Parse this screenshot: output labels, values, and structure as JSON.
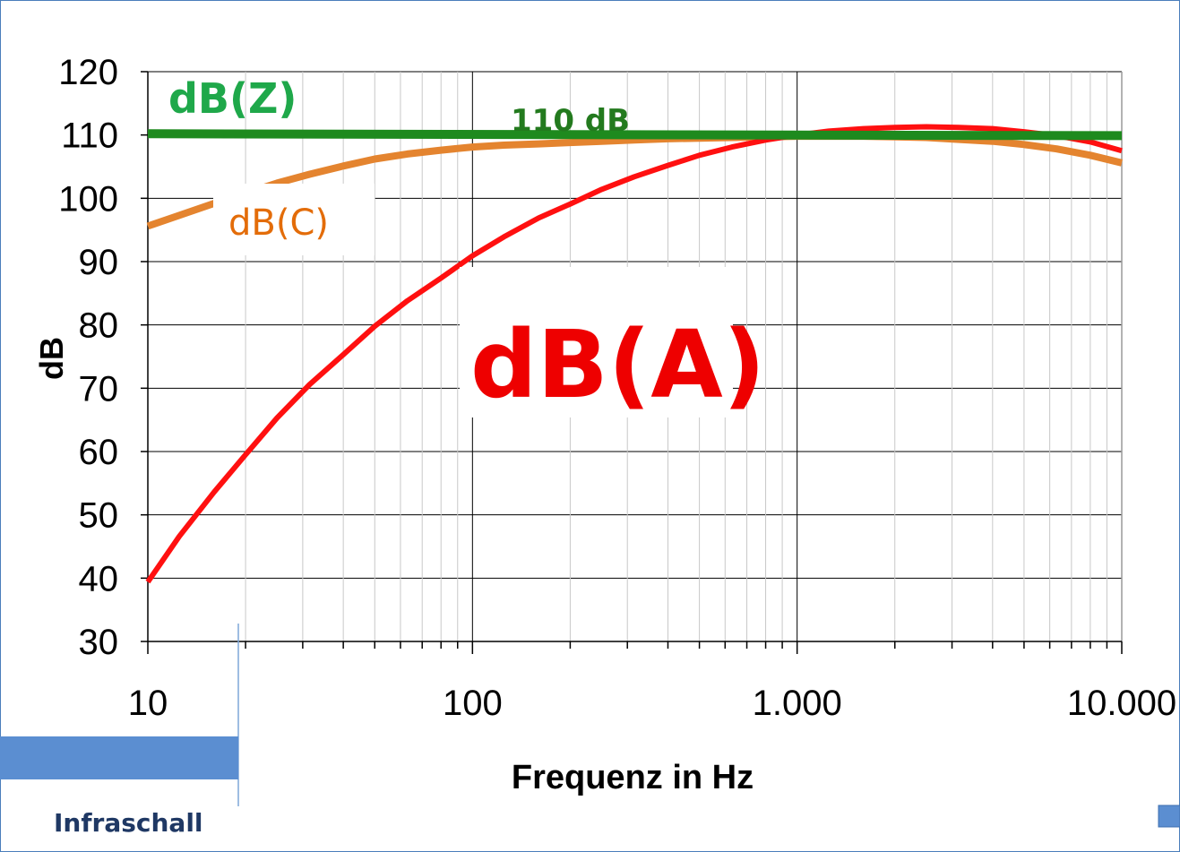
{
  "chart_data": {
    "type": "line",
    "xscale": "log",
    "xlim": [
      10,
      10000
    ],
    "ylim": [
      30,
      120
    ],
    "xticks": [
      10,
      100,
      1000,
      10000
    ],
    "xtick_labels": [
      "10",
      "100",
      "1.000",
      "10.000"
    ],
    "yticks": [
      30,
      40,
      50,
      60,
      70,
      80,
      90,
      100,
      110,
      120
    ],
    "xlabel": "Frequenz in Hz",
    "ylabel": "dB",
    "grid": true,
    "series": [
      {
        "name": "dB(C)",
        "color": "#e4842f",
        "x": [
          10,
          12.5,
          16,
          20,
          25,
          31.5,
          40,
          50,
          63,
          80,
          100,
          125,
          160,
          200,
          250,
          315,
          400,
          500,
          630,
          800,
          1000,
          1250,
          1600,
          2000,
          2500,
          3150,
          4000,
          5000,
          6300,
          8000,
          10000
        ],
        "values": [
          95.6,
          97.3,
          99.2,
          100.8,
          102.4,
          103.8,
          105.1,
          106.2,
          107.0,
          107.6,
          108.1,
          108.4,
          108.6,
          108.8,
          109.0,
          109.2,
          109.4,
          109.5,
          109.6,
          109.7,
          109.8,
          109.8,
          109.8,
          109.7,
          109.6,
          109.3,
          109.0,
          108.5,
          107.8,
          106.8,
          105.6
        ]
      },
      {
        "name": "dB(A)",
        "color": "#ff1010",
        "x": [
          10,
          12.5,
          16,
          20,
          25,
          31.5,
          40,
          50,
          63,
          80,
          100,
          125,
          160,
          200,
          250,
          315,
          400,
          500,
          630,
          800,
          1000,
          1250,
          1600,
          2000,
          2500,
          3150,
          4000,
          5000,
          6300,
          8000,
          10000
        ],
        "values": [
          39.4,
          46.6,
          53.6,
          59.5,
          65.3,
          70.6,
          75.3,
          79.8,
          83.8,
          87.4,
          90.9,
          93.9,
          96.9,
          99.1,
          101.4,
          103.4,
          105.2,
          106.8,
          108.1,
          109.2,
          110.0,
          110.6,
          111.0,
          111.2,
          111.3,
          111.2,
          111.0,
          110.5,
          109.9,
          108.9,
          107.5
        ]
      },
      {
        "name": "dB(Z)",
        "color": "#1e8a1e",
        "x": [
          10,
          10000
        ],
        "values": [
          110.2,
          109.9
        ]
      }
    ],
    "annotations": [
      "dB(Z)",
      "110 dB",
      "dB(C)",
      "dB(A)"
    ]
  },
  "annotations": {
    "dbz": "dB(Z)",
    "level": "110 dB",
    "dbc": "dB(C)",
    "dba": "dB(A)"
  },
  "infrasound": {
    "label": "Infraschall",
    "color": "#5b8ed1"
  }
}
